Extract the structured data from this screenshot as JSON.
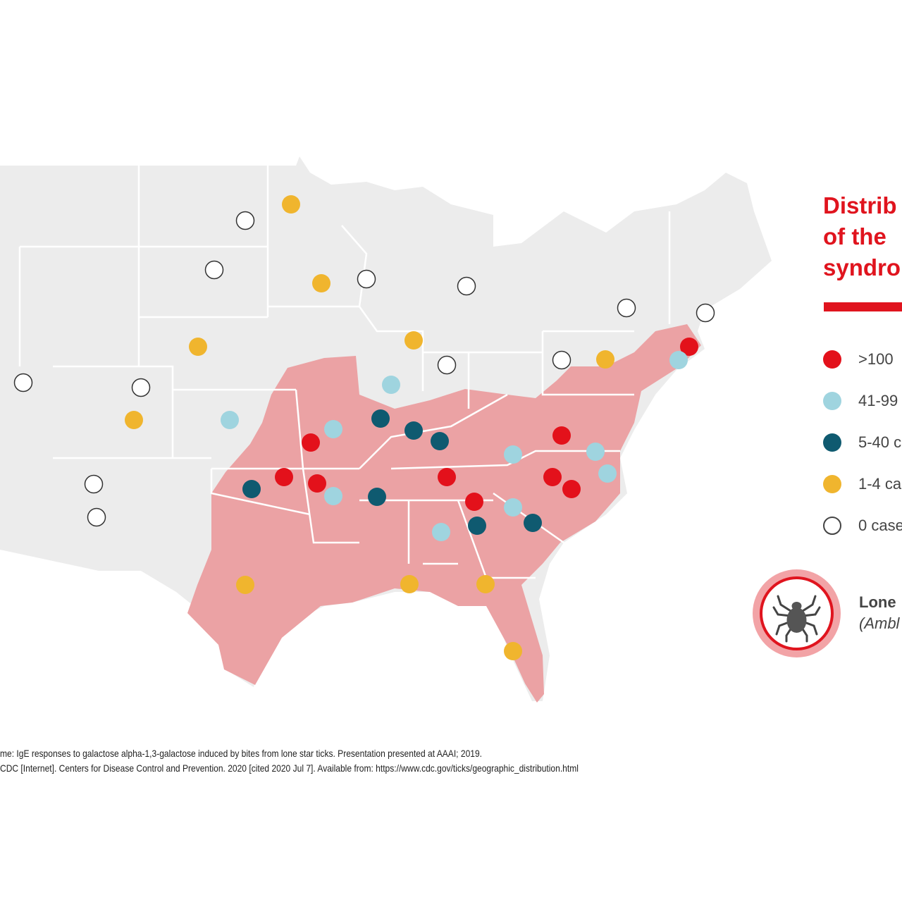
{
  "title": {
    "line1": "Distrib",
    "line2": "of the",
    "line3": "syndro"
  },
  "legend": [
    {
      "label": ">100",
      "color": "#e3111b",
      "category": "gt100"
    },
    {
      "label": "41-99",
      "color": "#9fd4df",
      "category": "41-99"
    },
    {
      "label": "5-40 c",
      "color": "#0f5a70",
      "category": "5-40"
    },
    {
      "label": "1-4 ca",
      "color": "#f0b52e",
      "category": "1-4"
    },
    {
      "label": "0 case",
      "color": "#ffffff",
      "category": "0"
    }
  ],
  "tick": {
    "name": "Lone",
    "latin": "(Ambl",
    "icon": "tick-icon"
  },
  "colors": {
    "accent": "#e0141e",
    "range": "#eba2a4",
    "land": "#ececec"
  },
  "references": [
    "me: IgE responses to galactose alpha-1,3-galactose induced by bites from lone star ticks. Presentation presented at AAAI; 2019.",
    "CDC [Internet]. Centers for Disease Control and Prevention. 2020 [cited 2020 Jul 7]. Available from: https://www.cdc.gov/ticks/geographic_distribution.html"
  ]
}
